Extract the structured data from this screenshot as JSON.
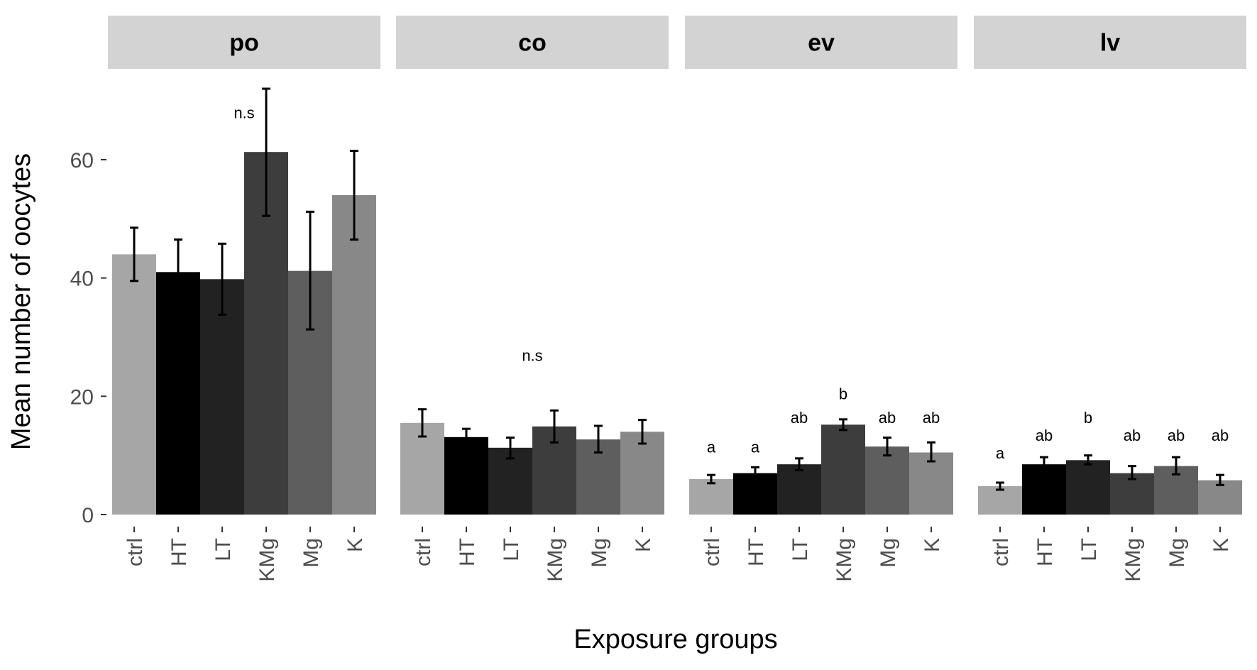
{
  "chart_data": {
    "type": "bar",
    "title": "",
    "xlabel": "Exposure groups",
    "ylabel": "Mean number of oocytes",
    "ylim": [
      0,
      75
    ],
    "yticks": [
      0,
      20,
      40,
      60
    ],
    "grid": false,
    "categories": [
      "ctrl",
      "HT",
      "LT",
      "KMg",
      "Mg",
      "K"
    ],
    "colors": [
      "#a6a6a6",
      "#000000",
      "#222222",
      "#3d3d3d",
      "#5e5e5e",
      "#888888"
    ],
    "facets": [
      {
        "name": "po",
        "values": [
          44,
          41,
          39.8,
          61.3,
          41.2,
          54
        ],
        "errors": [
          [
            39.5,
            48.5
          ],
          [
            35.5,
            46.5
          ],
          [
            33.8,
            45.8
          ],
          [
            50.5,
            72
          ],
          [
            31.3,
            51.2
          ],
          [
            46.5,
            61.5
          ]
        ],
        "annotations": [
          {
            "text": "n.s",
            "x_index": 2.5,
            "y": 67
          }
        ]
      },
      {
        "name": "co",
        "values": [
          15.5,
          13.1,
          11.3,
          14.9,
          12.7,
          14
        ],
        "errors": [
          [
            13.2,
            17.8
          ],
          [
            11.5,
            14.5
          ],
          [
            9.5,
            13
          ],
          [
            12.2,
            17.6
          ],
          [
            10.5,
            15
          ],
          [
            12,
            16
          ]
        ],
        "annotations": [
          {
            "text": "n.s",
            "x_index": 2.5,
            "y": 26
          }
        ]
      },
      {
        "name": "ev",
        "values": [
          6,
          7,
          8.5,
          15.2,
          11.5,
          10.5
        ],
        "errors": [
          [
            5.3,
            6.7
          ],
          [
            6,
            8
          ],
          [
            7.5,
            9.5
          ],
          [
            14.3,
            16.1
          ],
          [
            10,
            13
          ],
          [
            9,
            12.2
          ]
        ],
        "annotations": [
          {
            "text": "a",
            "x_index": 0,
            "y": 10.5
          },
          {
            "text": "a",
            "x_index": 1,
            "y": 10.5
          },
          {
            "text": "ab",
            "x_index": 2,
            "y": 15.5
          },
          {
            "text": "b",
            "x_index": 3,
            "y": 19.5
          },
          {
            "text": "ab",
            "x_index": 4,
            "y": 15.5
          },
          {
            "text": "ab",
            "x_index": 5,
            "y": 15.5
          }
        ]
      },
      {
        "name": "lv",
        "values": [
          4.8,
          8.5,
          9.2,
          7,
          8.2,
          5.8
        ],
        "errors": [
          [
            4.2,
            5.4
          ],
          [
            7.5,
            9.7
          ],
          [
            8.5,
            10
          ],
          [
            6,
            8.2
          ],
          [
            6.8,
            9.7
          ],
          [
            5,
            6.7
          ]
        ],
        "annotations": [
          {
            "text": "a",
            "x_index": 0,
            "y": 9.5
          },
          {
            "text": "ab",
            "x_index": 1,
            "y": 12.5
          },
          {
            "text": "b",
            "x_index": 2,
            "y": 15.5
          },
          {
            "text": "ab",
            "x_index": 3,
            "y": 12.5
          },
          {
            "text": "ab",
            "x_index": 4,
            "y": 12.5
          },
          {
            "text": "ab",
            "x_index": 5,
            "y": 12.5
          }
        ]
      }
    ]
  }
}
